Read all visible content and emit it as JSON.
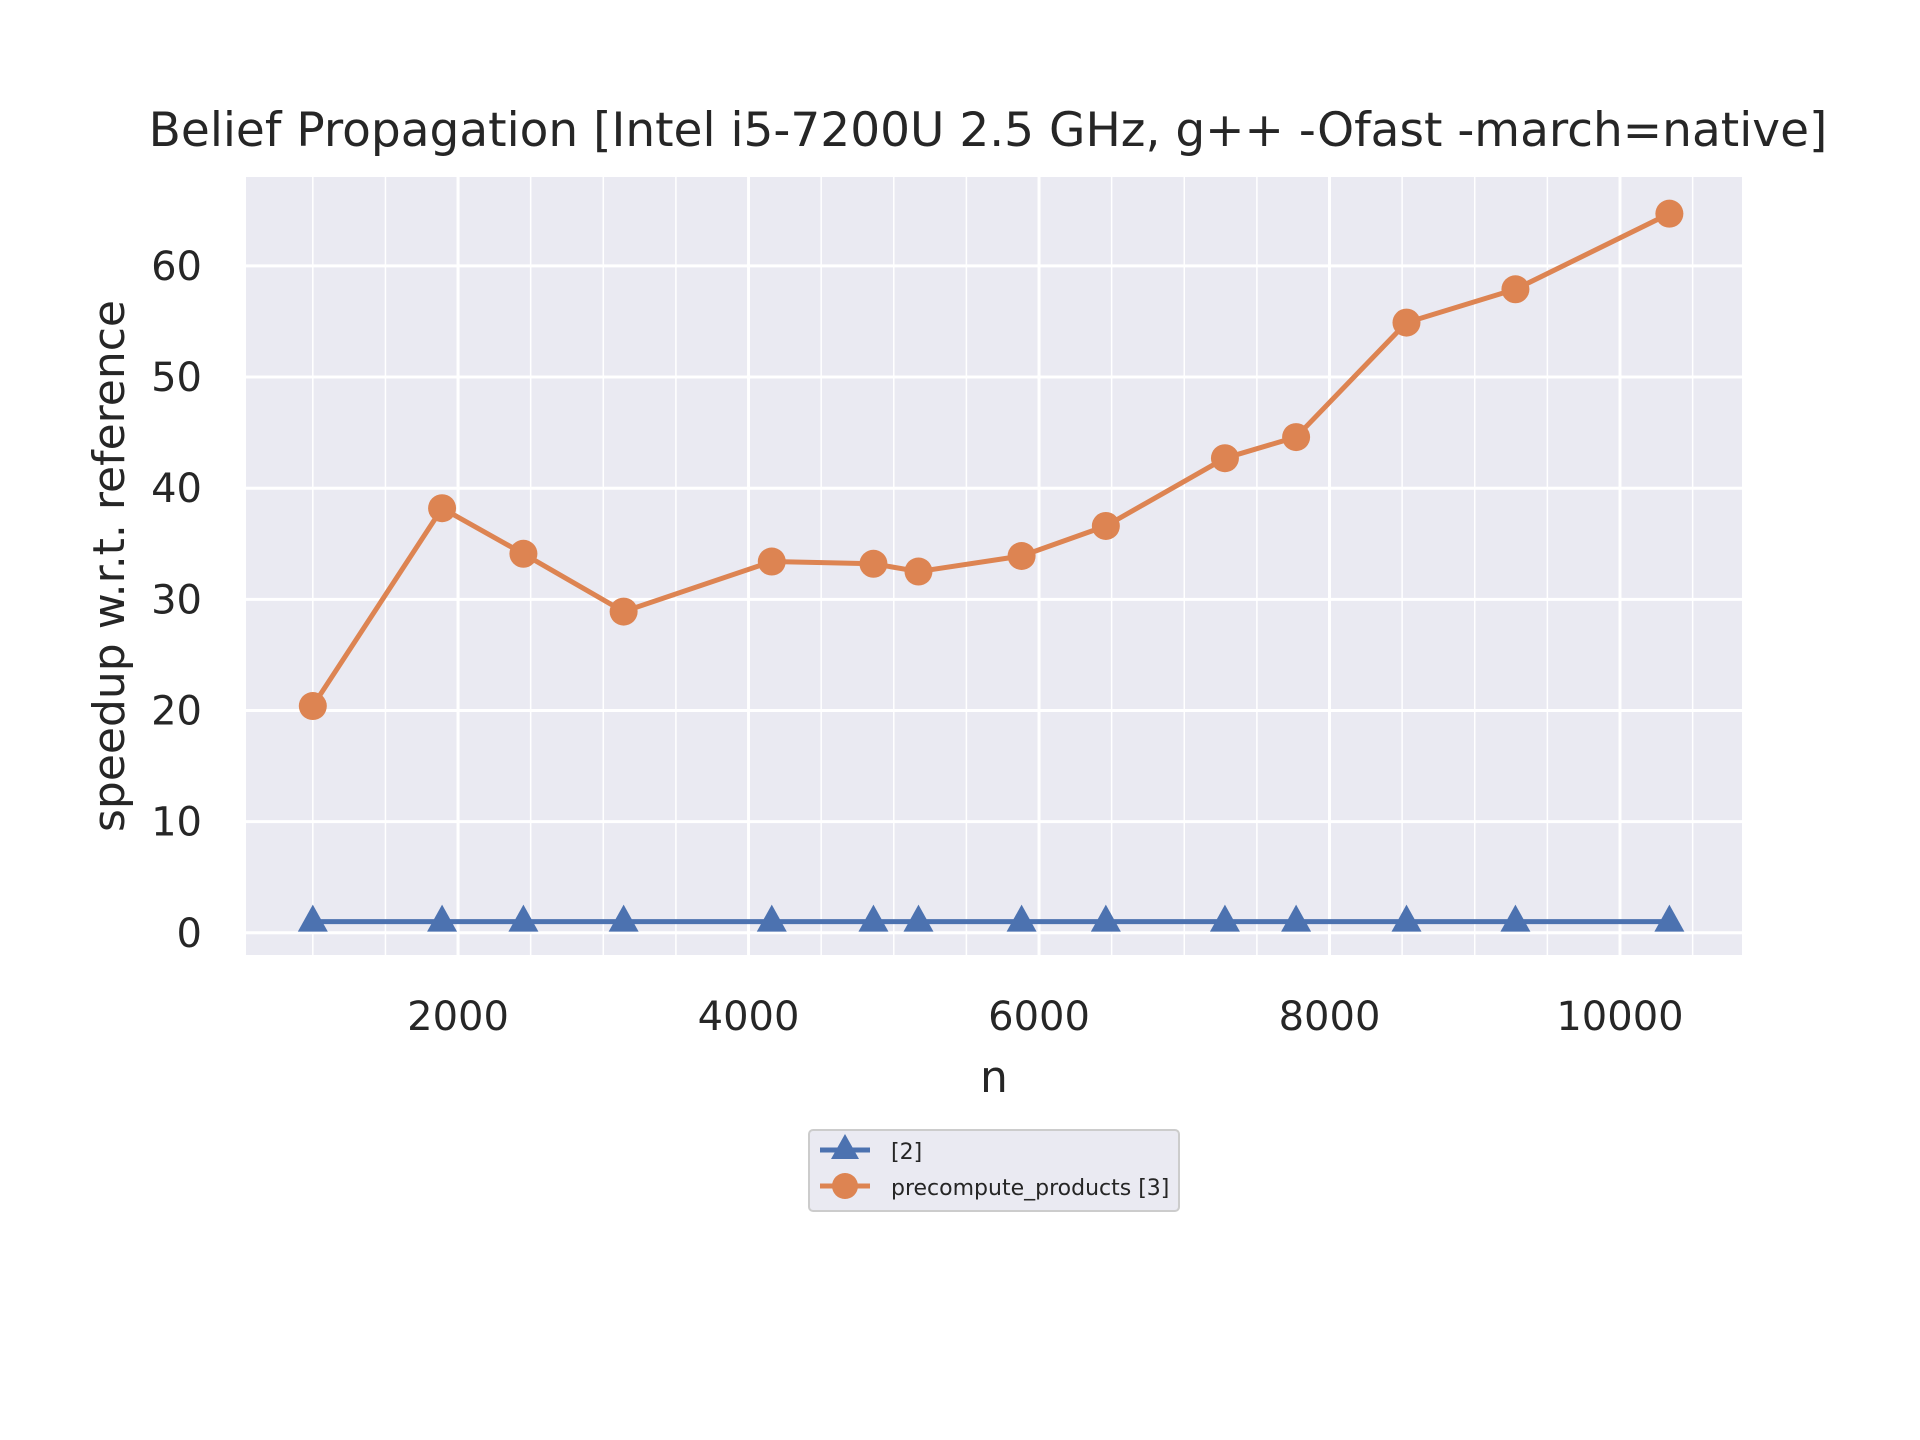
{
  "chart_data": {
    "type": "line",
    "title": "Belief Propagation [Intel i5-7200U 2.5 GHz, g++ -Ofast -march=native]",
    "xlabel": "n",
    "ylabel": "speedup w.r.t. reference",
    "xlim": [
      540,
      10840
    ],
    "ylim": [
      -2,
      68
    ],
    "xticks": [
      2000,
      4000,
      6000,
      8000,
      10000
    ],
    "xtick_labels": [
      "2000",
      "4000",
      "6000",
      "8000",
      "10000"
    ],
    "xminor": [
      1000,
      1500,
      2500,
      3000,
      3500,
      4500,
      5000,
      5500,
      6500,
      7000,
      7500,
      8500,
      9000,
      9500,
      10500
    ],
    "yticks": [
      0,
      10,
      20,
      30,
      40,
      50,
      60
    ],
    "ytick_labels": [
      "0",
      "10",
      "20",
      "30",
      "40",
      "50",
      "60"
    ],
    "grid": true,
    "legend": "below-center",
    "x": [
      1000,
      1890,
      2450,
      3140,
      4160,
      4860,
      5170,
      5880,
      6460,
      7280,
      7770,
      8530,
      9280,
      10340
    ],
    "series": [
      {
        "name": "[2]",
        "color": "#4c72b0",
        "marker": "triangle",
        "values": [
          1,
          1,
          1,
          1,
          1,
          1,
          1,
          1,
          1,
          1,
          1,
          1,
          1,
          1
        ]
      },
      {
        "name": "precompute_products [3]",
        "color": "#dd8452",
        "marker": "circle",
        "values": [
          20.4,
          38.2,
          34.1,
          28.9,
          33.4,
          33.2,
          32.5,
          33.9,
          36.6,
          42.7,
          44.6,
          54.9,
          57.9,
          64.7
        ]
      }
    ]
  }
}
